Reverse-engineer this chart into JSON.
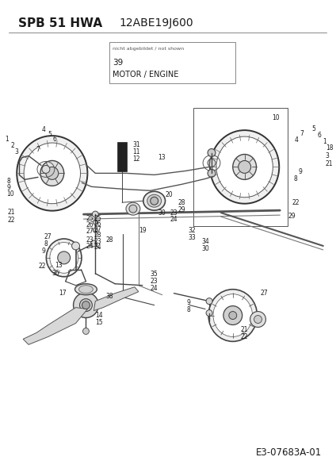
{
  "title_left": "SPB 51 HWA",
  "title_right": "12ABE19J600",
  "not_shown_label": "nicht abgebildet / not shown",
  "part_number": "39",
  "part_name": "MOTOR / ENGINE",
  "bottom_code": "E3-07683A-01",
  "bg_color": "#ffffff",
  "text_color": "#1a1a1a",
  "line_color": "#444444",
  "title_fontsize": 11,
  "label_fontsize": 5.5,
  "code_fontsize": 8.5
}
